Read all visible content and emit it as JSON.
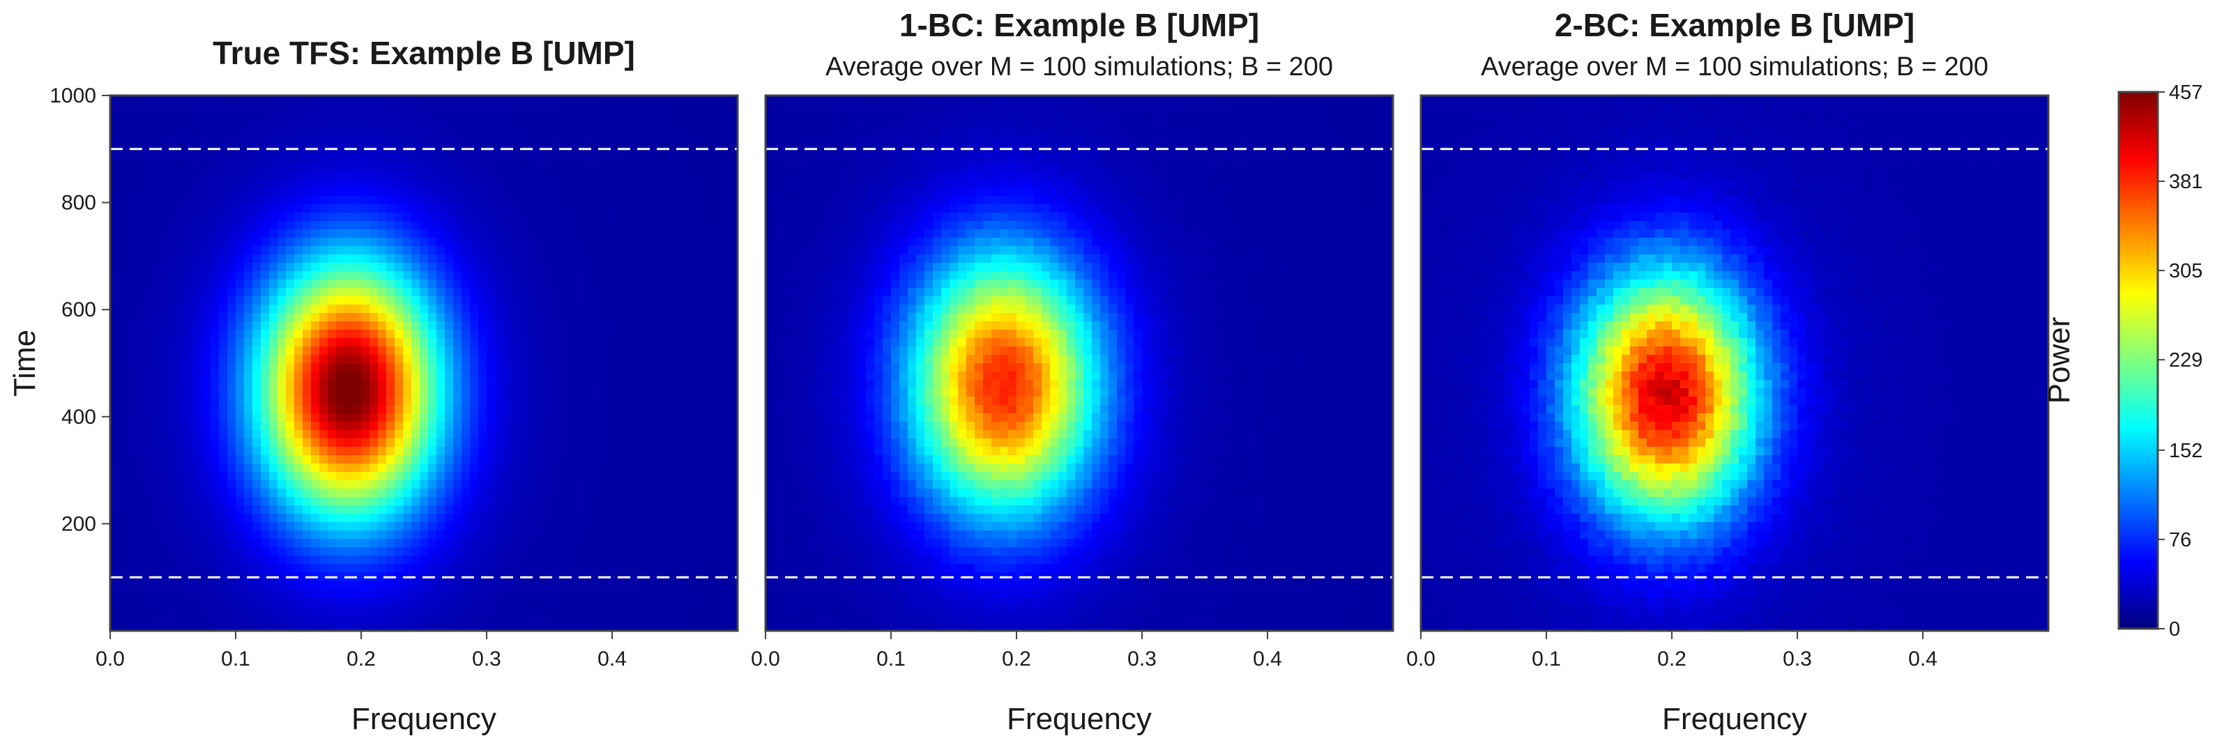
{
  "chart_data": {
    "type": "heatmap",
    "y_axis_label": "Time",
    "colorbar": {
      "label": "Power",
      "min": 0,
      "max": 457,
      "ticks": [
        "0",
        "76",
        "152",
        "229",
        "305",
        "381",
        "457"
      ],
      "colormap": [
        "#00007F",
        "#0000FF",
        "#007FFF",
        "#00FFFF",
        "#7FFF7F",
        "#FFFF00",
        "#FF7F00",
        "#FF0000",
        "#7F0000"
      ]
    },
    "panels": [
      {
        "title": "True TFS: Example B   [UMP]",
        "subtitle": "",
        "xlabel": "Frequency",
        "xlim": [
          0,
          0.5
        ],
        "ylim": [
          0,
          1000
        ],
        "x_ticks": [
          "0.0",
          "0.1",
          "0.2",
          "0.3",
          "0.4"
        ],
        "y_ticks": [
          "200",
          "400",
          "600",
          "800",
          "1000"
        ],
        "dashed_lines_time": [
          100,
          900
        ],
        "peak": {
          "frequency": 0.19,
          "time": 450,
          "power": 457,
          "width_frequency": 0.05,
          "width_time": 165,
          "background": 15
        },
        "texture": 0
      },
      {
        "title": "1-BC: Example B   [UMP]",
        "subtitle": "Average over M = 100 simulations;  B = 200",
        "xlabel": "Frequency",
        "xlim": [
          0,
          0.5
        ],
        "ylim": [
          0,
          1000
        ],
        "x_ticks": [
          "0.0",
          "0.1",
          "0.2",
          "0.3",
          "0.4"
        ],
        "y_ticks": [],
        "dashed_lines_time": [
          100,
          900
        ],
        "peak": {
          "frequency": 0.19,
          "time": 460,
          "power": 375,
          "width_frequency": 0.052,
          "width_time": 170,
          "background": 15
        },
        "texture": 18
      },
      {
        "title": "2-BC: Example B   [UMP]",
        "subtitle": "Average over M = 100 simulations;  B = 200",
        "xlabel": "Frequency",
        "xlim": [
          0,
          0.5
        ],
        "ylim": [
          0,
          1000
        ],
        "x_ticks": [
          "0.0",
          "0.1",
          "0.2",
          "0.3",
          "0.4"
        ],
        "y_ticks": [],
        "dashed_lines_time": [
          100,
          900
        ],
        "peak": {
          "frequency": 0.195,
          "time": 440,
          "power": 410,
          "width_frequency": 0.05,
          "width_time": 160,
          "background": 18
        },
        "texture": 35
      }
    ]
  }
}
